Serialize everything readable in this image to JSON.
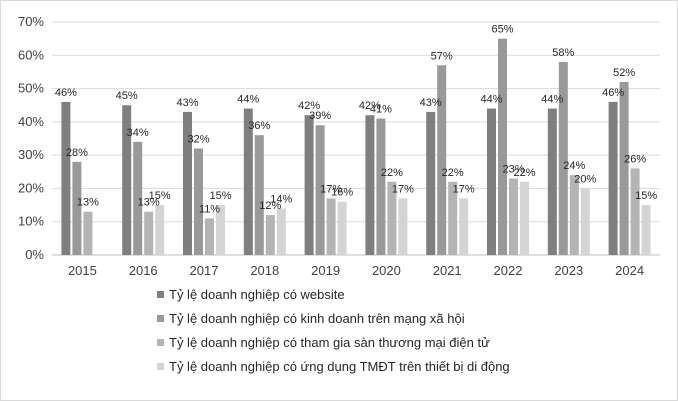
{
  "chart_data": {
    "type": "bar",
    "title": "",
    "xlabel": "",
    "ylabel": "",
    "ylim": [
      0,
      70
    ],
    "yticks": [
      "0%",
      "10%",
      "20%",
      "30%",
      "40%",
      "50%",
      "60%",
      "70%"
    ],
    "grid": true,
    "legend_position": "bottom",
    "categories": [
      "2015",
      "2016",
      "2017",
      "2018",
      "2019",
      "2020",
      "2021",
      "2022",
      "2023",
      "2024"
    ],
    "series": [
      {
        "name": "Tỷ lệ doanh nghiệp có website",
        "color": "#7f7f7f",
        "values": [
          46,
          45,
          43,
          44,
          42,
          42,
          43,
          44,
          44,
          46
        ],
        "labels": [
          "46%",
          "45%",
          "43%",
          "44%",
          "42%",
          "42%",
          "43%",
          "44%",
          "44%",
          "46%"
        ]
      },
      {
        "name": "Tỷ lệ doanh nghiệp có kinh doanh trên mạng xã hội",
        "color": "#999999",
        "values": [
          28,
          34,
          32,
          36,
          39,
          41,
          57,
          65,
          58,
          52
        ],
        "labels": [
          "28%",
          "34%",
          "32%",
          "36%",
          "39%",
          "41%",
          "57%",
          "65%",
          "58%",
          "52%"
        ]
      },
      {
        "name": "Tỷ lệ doanh nghiệp có tham gia sàn thương mại điện tử",
        "color": "#b4b4b4",
        "values": [
          13,
          13,
          11,
          12,
          17,
          22,
          22,
          23,
          24,
          26
        ],
        "labels": [
          "13%",
          "13%",
          "11%",
          "12%",
          "17%",
          "22%",
          "22%",
          "23%",
          "24%",
          "26%"
        ]
      },
      {
        "name": "Tỷ lệ doanh nghiệp có ứng dụng TMĐT trên thiết bị di động",
        "color": "#d4d4d4",
        "values": [
          null,
          15,
          15,
          14,
          16,
          17,
          17,
          22,
          20,
          15
        ],
        "labels": [
          "",
          "15%",
          "15%",
          "14%",
          "16%",
          "17%",
          "17%",
          "22%",
          "20%",
          "15%"
        ]
      }
    ]
  }
}
